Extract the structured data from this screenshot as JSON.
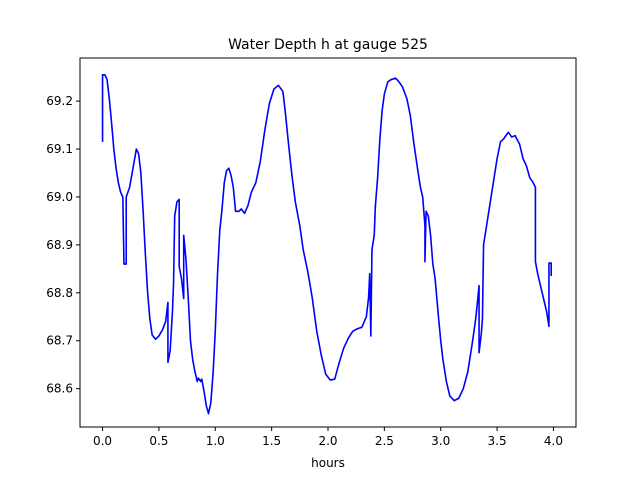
{
  "chart_data": {
    "type": "line",
    "title": "Water Depth h at gauge 525",
    "xlabel": "hours",
    "ylabel": "",
    "xlim": [
      -0.2,
      4.2
    ],
    "ylim": [
      68.52,
      69.29
    ],
    "grid": false,
    "x_ticks": [
      0.0,
      0.5,
      1.0,
      1.5,
      2.0,
      2.5,
      3.0,
      3.5,
      4.0
    ],
    "x_tick_labels": [
      "0.0",
      "0.5",
      "1.0",
      "1.5",
      "2.0",
      "2.5",
      "3.0",
      "3.5",
      "4.0"
    ],
    "y_ticks": [
      68.6,
      68.7,
      68.8,
      68.9,
      69.0,
      69.1,
      69.2
    ],
    "y_tick_labels": [
      "68.6",
      "68.7",
      "68.8",
      "68.9",
      "69.0",
      "69.1",
      "69.2"
    ],
    "series": [
      {
        "color": "#0000ff",
        "points": [
          [
            0.0,
            69.115
          ],
          [
            0.0,
            69.255
          ],
          [
            0.02,
            69.255
          ],
          [
            0.04,
            69.245
          ],
          [
            0.06,
            69.205
          ],
          [
            0.08,
            69.155
          ],
          [
            0.1,
            69.1
          ],
          [
            0.12,
            69.06
          ],
          [
            0.14,
            69.03
          ],
          [
            0.16,
            69.01
          ],
          [
            0.18,
            69.0
          ],
          [
            0.19,
            68.86
          ],
          [
            0.21,
            68.86
          ],
          [
            0.21,
            69.0
          ],
          [
            0.24,
            69.02
          ],
          [
            0.27,
            69.06
          ],
          [
            0.3,
            69.1
          ],
          [
            0.32,
            69.09
          ],
          [
            0.34,
            69.05
          ],
          [
            0.36,
            68.97
          ],
          [
            0.38,
            68.88
          ],
          [
            0.4,
            68.8
          ],
          [
            0.42,
            68.745
          ],
          [
            0.44,
            68.712
          ],
          [
            0.47,
            68.703
          ],
          [
            0.5,
            68.71
          ],
          [
            0.53,
            68.722
          ],
          [
            0.56,
            68.74
          ],
          [
            0.58,
            68.78
          ],
          [
            0.58,
            68.655
          ],
          [
            0.6,
            68.68
          ],
          [
            0.62,
            68.76
          ],
          [
            0.63,
            68.82
          ],
          [
            0.64,
            68.96
          ],
          [
            0.66,
            68.99
          ],
          [
            0.68,
            68.995
          ],
          [
            0.68,
            68.855
          ],
          [
            0.7,
            68.83
          ],
          [
            0.72,
            68.788
          ],
          [
            0.72,
            68.92
          ],
          [
            0.74,
            68.87
          ],
          [
            0.76,
            68.79
          ],
          [
            0.78,
            68.7
          ],
          [
            0.8,
            68.66
          ],
          [
            0.82,
            68.635
          ],
          [
            0.84,
            68.615
          ],
          [
            0.85,
            68.622
          ],
          [
            0.87,
            68.615
          ],
          [
            0.88,
            68.62
          ],
          [
            0.9,
            68.595
          ],
          [
            0.92,
            68.565
          ],
          [
            0.94,
            68.548
          ],
          [
            0.96,
            68.57
          ],
          [
            0.98,
            68.63
          ],
          [
            1.0,
            68.72
          ],
          [
            1.02,
            68.84
          ],
          [
            1.04,
            68.93
          ],
          [
            1.06,
            68.975
          ],
          [
            1.08,
            69.03
          ],
          [
            1.1,
            69.055
          ],
          [
            1.12,
            69.06
          ],
          [
            1.14,
            69.045
          ],
          [
            1.16,
            69.02
          ],
          [
            1.18,
            68.97
          ],
          [
            1.21,
            68.97
          ],
          [
            1.23,
            68.975
          ],
          [
            1.26,
            68.966
          ],
          [
            1.29,
            68.982
          ],
          [
            1.32,
            69.01
          ],
          [
            1.36,
            69.03
          ],
          [
            1.4,
            69.075
          ],
          [
            1.44,
            69.14
          ],
          [
            1.48,
            69.195
          ],
          [
            1.52,
            69.225
          ],
          [
            1.56,
            69.233
          ],
          [
            1.6,
            69.22
          ],
          [
            1.62,
            69.18
          ],
          [
            1.65,
            69.11
          ],
          [
            1.68,
            69.045
          ],
          [
            1.71,
            68.99
          ],
          [
            1.75,
            68.94
          ],
          [
            1.78,
            68.89
          ],
          [
            1.82,
            68.845
          ],
          [
            1.86,
            68.79
          ],
          [
            1.9,
            68.72
          ],
          [
            1.94,
            68.67
          ],
          [
            1.98,
            68.63
          ],
          [
            2.02,
            68.618
          ],
          [
            2.06,
            68.62
          ],
          [
            2.1,
            68.655
          ],
          [
            2.14,
            68.685
          ],
          [
            2.18,
            68.705
          ],
          [
            2.22,
            68.72
          ],
          [
            2.26,
            68.725
          ],
          [
            2.3,
            68.728
          ],
          [
            2.34,
            68.75
          ],
          [
            2.36,
            68.79
          ],
          [
            2.37,
            68.84
          ],
          [
            2.38,
            68.71
          ],
          [
            2.39,
            68.89
          ],
          [
            2.41,
            68.92
          ],
          [
            2.42,
            68.98
          ],
          [
            2.44,
            69.04
          ],
          [
            2.46,
            69.12
          ],
          [
            2.48,
            69.18
          ],
          [
            2.5,
            69.215
          ],
          [
            2.53,
            69.24
          ],
          [
            2.56,
            69.245
          ],
          [
            2.6,
            69.248
          ],
          [
            2.63,
            69.24
          ],
          [
            2.66,
            69.23
          ],
          [
            2.7,
            69.205
          ],
          [
            2.73,
            69.17
          ],
          [
            2.76,
            69.115
          ],
          [
            2.8,
            69.05
          ],
          [
            2.82,
            69.02
          ],
          [
            2.84,
            69.0
          ],
          [
            2.86,
            68.94
          ],
          [
            2.86,
            68.865
          ],
          [
            2.87,
            68.97
          ],
          [
            2.89,
            68.96
          ],
          [
            2.91,
            68.92
          ],
          [
            2.93,
            68.86
          ],
          [
            2.95,
            68.83
          ],
          [
            2.98,
            68.75
          ],
          [
            3.0,
            68.7
          ],
          [
            3.02,
            68.66
          ],
          [
            3.05,
            68.615
          ],
          [
            3.08,
            68.585
          ],
          [
            3.12,
            68.575
          ],
          [
            3.16,
            68.58
          ],
          [
            3.2,
            68.6
          ],
          [
            3.24,
            68.635
          ],
          [
            3.28,
            68.695
          ],
          [
            3.31,
            68.745
          ],
          [
            3.33,
            68.79
          ],
          [
            3.34,
            68.815
          ],
          [
            3.34,
            68.675
          ],
          [
            3.36,
            68.715
          ],
          [
            3.37,
            68.745
          ],
          [
            3.38,
            68.9
          ],
          [
            3.4,
            68.93
          ],
          [
            3.42,
            68.96
          ],
          [
            3.44,
            68.99
          ],
          [
            3.46,
            69.02
          ],
          [
            3.48,
            69.05
          ],
          [
            3.5,
            69.08
          ],
          [
            3.53,
            69.115
          ],
          [
            3.56,
            69.122
          ],
          [
            3.6,
            69.135
          ],
          [
            3.63,
            69.125
          ],
          [
            3.66,
            69.128
          ],
          [
            3.7,
            69.11
          ],
          [
            3.73,
            69.08
          ],
          [
            3.76,
            69.065
          ],
          [
            3.79,
            69.04
          ],
          [
            3.82,
            69.03
          ],
          [
            3.84,
            69.02
          ],
          [
            3.84,
            68.865
          ],
          [
            3.86,
            68.84
          ],
          [
            3.9,
            68.8
          ],
          [
            3.94,
            68.76
          ],
          [
            3.96,
            68.73
          ],
          [
            3.96,
            68.862
          ],
          [
            3.98,
            68.862
          ],
          [
            3.98,
            68.835
          ]
        ]
      }
    ]
  }
}
